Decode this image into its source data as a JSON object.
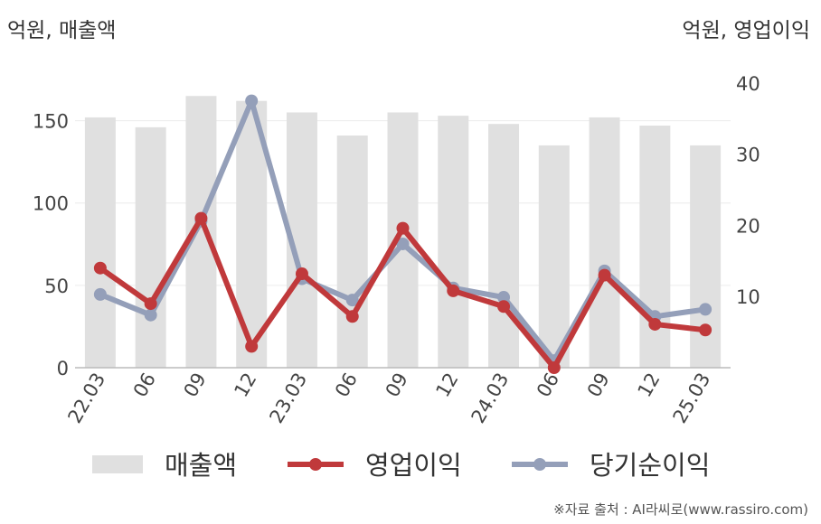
{
  "left_axis_unit": "억원, 매출액",
  "right_axis_unit": "억원, 영업이익",
  "source": "※자료 출처 : AI라씨로(www.rassiro.com)",
  "colors": {
    "revenue": "#e0e0e0",
    "operating": "#c0393b",
    "net": "#949fb9",
    "axis": "#bbbbbb",
    "grid": "#ececec"
  },
  "chart_data": {
    "type": "bar",
    "categories": [
      "22.03",
      "06",
      "09",
      "12",
      "23.03",
      "06",
      "09",
      "12",
      "24.03",
      "06",
      "09",
      "12",
      "25.03"
    ],
    "series": [
      {
        "name": "매출액",
        "type": "bar",
        "axis": "left",
        "values": [
          152,
          146,
          165,
          162,
          155,
          141,
          155,
          153,
          148,
          135,
          152,
          147,
          135
        ]
      },
      {
        "name": "영업이익",
        "type": "line",
        "axis": "right",
        "values": [
          14,
          9,
          21,
          3,
          13.2,
          7.2,
          19.6,
          10.8,
          8.6,
          0,
          13,
          6.1,
          5.3
        ]
      },
      {
        "name": "당기순이익",
        "type": "line",
        "axis": "right",
        "values": [
          10.3,
          7.4,
          20.6,
          37.5,
          12.5,
          9.5,
          17.4,
          11.2,
          9.9,
          1,
          13.6,
          7.2,
          8.2
        ]
      }
    ],
    "left_ticks": [
      0,
      50,
      100,
      150
    ],
    "right_ticks": [
      10,
      20,
      30,
      40
    ],
    "left_ylim": [
      0,
      175
    ],
    "right_ylim": [
      0,
      40.5
    ],
    "grid": true,
    "legend": "bottom"
  }
}
